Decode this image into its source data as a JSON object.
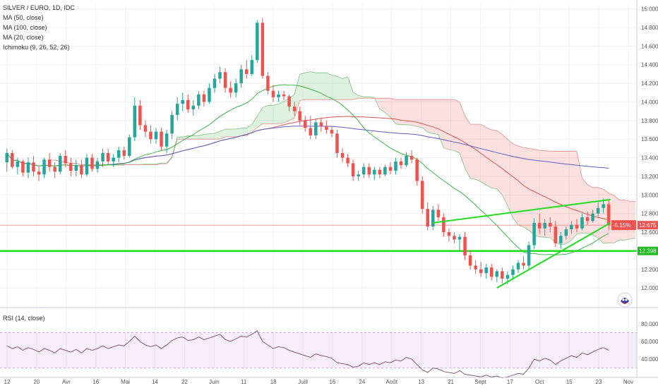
{
  "chart_data": {
    "type": "candlestick",
    "symbol_title": "SILVER / EURO, 1D, IDC",
    "indicators": [
      "MA (50, close)",
      "MA (100, close)",
      "MA (20, close)",
      "Ichimoku (9, 26, 52, 26)"
    ],
    "rsi_title": "RSI (14, close)",
    "price_axis": {
      "ticks": [
        "15.000",
        "14.800",
        "14.600",
        "14.400",
        "14.200",
        "14.000",
        "13.800",
        "13.600",
        "13.400",
        "13.200",
        "13.000",
        "12.800",
        "12.600",
        "12.400",
        "12.200",
        "12.000"
      ],
      "range": [
        11.88,
        15.05
      ]
    },
    "rsi_axis": {
      "ticks": [
        "80.0000",
        "60.0000",
        "40.0000"
      ],
      "range": [
        25,
        95
      ],
      "bands": [
        70,
        30
      ]
    },
    "x_labels": [
      "12",
      "20",
      "Avr",
      "16",
      "Mai",
      "14",
      "22",
      "Juin",
      "11",
      "18",
      "Juill",
      "16",
      "24",
      "Août",
      "13",
      "21",
      "Sept",
      "17",
      "Oct",
      "15",
      "23",
      "Nov"
    ],
    "price_badges": {
      "change": "-5.15%",
      "last": "12.675",
      "level": "12.398"
    },
    "last_price": 12.675,
    "level_price": 12.398,
    "candles": [
      {
        "o": 13.35,
        "h": 13.5,
        "l": 13.25,
        "c": 13.45
      },
      {
        "o": 13.45,
        "h": 13.48,
        "l": 13.28,
        "c": 13.3
      },
      {
        "o": 13.3,
        "h": 13.4,
        "l": 13.22,
        "c": 13.36
      },
      {
        "o": 13.36,
        "h": 13.38,
        "l": 13.2,
        "c": 13.24
      },
      {
        "o": 13.24,
        "h": 13.4,
        "l": 13.18,
        "c": 13.35
      },
      {
        "o": 13.35,
        "h": 13.42,
        "l": 13.2,
        "c": 13.25
      },
      {
        "o": 13.25,
        "h": 13.3,
        "l": 13.15,
        "c": 13.22
      },
      {
        "o": 13.22,
        "h": 13.4,
        "l": 13.18,
        "c": 13.38
      },
      {
        "o": 13.38,
        "h": 13.45,
        "l": 13.25,
        "c": 13.3
      },
      {
        "o": 13.3,
        "h": 13.35,
        "l": 13.18,
        "c": 13.25
      },
      {
        "o": 13.25,
        "h": 13.45,
        "l": 13.22,
        "c": 13.42
      },
      {
        "o": 13.42,
        "h": 13.48,
        "l": 13.3,
        "c": 13.34
      },
      {
        "o": 13.34,
        "h": 13.4,
        "l": 13.2,
        "c": 13.26
      },
      {
        "o": 13.26,
        "h": 13.38,
        "l": 13.2,
        "c": 13.32
      },
      {
        "o": 13.32,
        "h": 13.38,
        "l": 13.18,
        "c": 13.22
      },
      {
        "o": 13.22,
        "h": 13.44,
        "l": 13.2,
        "c": 13.4
      },
      {
        "o": 13.4,
        "h": 13.44,
        "l": 13.25,
        "c": 13.28
      },
      {
        "o": 13.28,
        "h": 13.4,
        "l": 13.24,
        "c": 13.36
      },
      {
        "o": 13.36,
        "h": 13.5,
        "l": 13.3,
        "c": 13.45
      },
      {
        "o": 13.45,
        "h": 13.5,
        "l": 13.32,
        "c": 13.36
      },
      {
        "o": 13.36,
        "h": 13.44,
        "l": 13.3,
        "c": 13.4
      },
      {
        "o": 13.4,
        "h": 13.52,
        "l": 13.35,
        "c": 13.48
      },
      {
        "o": 13.48,
        "h": 13.52,
        "l": 13.38,
        "c": 13.42
      },
      {
        "o": 13.42,
        "h": 13.65,
        "l": 13.4,
        "c": 13.62
      },
      {
        "o": 13.62,
        "h": 14.05,
        "l": 13.58,
        "c": 13.96
      },
      {
        "o": 13.96,
        "h": 14.02,
        "l": 13.7,
        "c": 13.75
      },
      {
        "o": 13.75,
        "h": 13.8,
        "l": 13.62,
        "c": 13.68
      },
      {
        "o": 13.68,
        "h": 13.75,
        "l": 13.55,
        "c": 13.6
      },
      {
        "o": 13.6,
        "h": 13.72,
        "l": 13.55,
        "c": 13.68
      },
      {
        "o": 13.68,
        "h": 13.72,
        "l": 13.48,
        "c": 13.52
      },
      {
        "o": 13.52,
        "h": 13.7,
        "l": 13.45,
        "c": 13.66
      },
      {
        "o": 13.66,
        "h": 13.9,
        "l": 13.6,
        "c": 13.86
      },
      {
        "o": 13.86,
        "h": 14.05,
        "l": 13.8,
        "c": 13.98
      },
      {
        "o": 13.98,
        "h": 14.1,
        "l": 13.9,
        "c": 14.02
      },
      {
        "o": 14.02,
        "h": 14.08,
        "l": 13.88,
        "c": 13.92
      },
      {
        "o": 13.92,
        "h": 14.02,
        "l": 13.85,
        "c": 13.96
      },
      {
        "o": 13.96,
        "h": 14.12,
        "l": 13.92,
        "c": 14.08
      },
      {
        "o": 14.08,
        "h": 14.12,
        "l": 13.95,
        "c": 14.0
      },
      {
        "o": 14.0,
        "h": 14.2,
        "l": 13.98,
        "c": 14.15
      },
      {
        "o": 14.15,
        "h": 14.3,
        "l": 14.1,
        "c": 14.25
      },
      {
        "o": 14.25,
        "h": 14.38,
        "l": 14.2,
        "c": 14.32
      },
      {
        "o": 14.32,
        "h": 14.36,
        "l": 14.1,
        "c": 14.15
      },
      {
        "o": 14.15,
        "h": 14.22,
        "l": 14.05,
        "c": 14.1
      },
      {
        "o": 14.1,
        "h": 14.25,
        "l": 14.05,
        "c": 14.2
      },
      {
        "o": 14.2,
        "h": 14.4,
        "l": 14.15,
        "c": 14.35
      },
      {
        "o": 14.35,
        "h": 14.45,
        "l": 14.25,
        "c": 14.3
      },
      {
        "o": 14.3,
        "h": 14.5,
        "l": 14.28,
        "c": 14.45
      },
      {
        "o": 14.45,
        "h": 14.88,
        "l": 14.42,
        "c": 14.85
      },
      {
        "o": 14.85,
        "h": 14.9,
        "l": 14.25,
        "c": 14.28
      },
      {
        "o": 14.28,
        "h": 14.32,
        "l": 14.08,
        "c": 14.12
      },
      {
        "o": 14.12,
        "h": 14.18,
        "l": 14.0,
        "c": 14.05
      },
      {
        "o": 14.05,
        "h": 14.12,
        "l": 14.0,
        "c": 14.08
      },
      {
        "o": 14.08,
        "h": 14.12,
        "l": 14.02,
        "c": 14.06
      },
      {
        "o": 14.06,
        "h": 14.08,
        "l": 13.9,
        "c": 13.95
      },
      {
        "o": 13.95,
        "h": 14.0,
        "l": 13.85,
        "c": 13.9
      },
      {
        "o": 13.9,
        "h": 13.95,
        "l": 13.75,
        "c": 13.8
      },
      {
        "o": 13.8,
        "h": 13.85,
        "l": 13.68,
        "c": 13.72
      },
      {
        "o": 13.72,
        "h": 13.85,
        "l": 13.6,
        "c": 13.64
      },
      {
        "o": 13.64,
        "h": 13.82,
        "l": 13.6,
        "c": 13.78
      },
      {
        "o": 13.78,
        "h": 13.82,
        "l": 13.68,
        "c": 13.74
      },
      {
        "o": 13.74,
        "h": 13.8,
        "l": 13.66,
        "c": 13.7
      },
      {
        "o": 13.7,
        "h": 13.74,
        "l": 13.62,
        "c": 13.66
      },
      {
        "o": 13.66,
        "h": 13.7,
        "l": 13.4,
        "c": 13.45
      },
      {
        "o": 13.45,
        "h": 13.5,
        "l": 13.35,
        "c": 13.4
      },
      {
        "o": 13.4,
        "h": 13.44,
        "l": 13.3,
        "c": 13.34
      },
      {
        "o": 13.34,
        "h": 13.38,
        "l": 13.15,
        "c": 13.2
      },
      {
        "o": 13.2,
        "h": 13.26,
        "l": 13.15,
        "c": 13.22
      },
      {
        "o": 13.22,
        "h": 13.34,
        "l": 13.18,
        "c": 13.3
      },
      {
        "o": 13.3,
        "h": 13.34,
        "l": 13.18,
        "c": 13.22
      },
      {
        "o": 13.22,
        "h": 13.3,
        "l": 13.16,
        "c": 13.27
      },
      {
        "o": 13.27,
        "h": 13.3,
        "l": 13.18,
        "c": 13.22
      },
      {
        "o": 13.22,
        "h": 13.32,
        "l": 13.2,
        "c": 13.3
      },
      {
        "o": 13.3,
        "h": 13.35,
        "l": 13.22,
        "c": 13.26
      },
      {
        "o": 13.26,
        "h": 13.4,
        "l": 13.22,
        "c": 13.36
      },
      {
        "o": 13.36,
        "h": 13.4,
        "l": 13.28,
        "c": 13.32
      },
      {
        "o": 13.32,
        "h": 13.46,
        "l": 13.3,
        "c": 13.42
      },
      {
        "o": 13.42,
        "h": 13.48,
        "l": 13.34,
        "c": 13.38
      },
      {
        "o": 13.38,
        "h": 13.4,
        "l": 13.1,
        "c": 13.15
      },
      {
        "o": 13.15,
        "h": 13.2,
        "l": 12.8,
        "c": 12.85
      },
      {
        "o": 12.85,
        "h": 12.92,
        "l": 12.62,
        "c": 12.66
      },
      {
        "o": 12.66,
        "h": 12.88,
        "l": 12.62,
        "c": 12.84
      },
      {
        "o": 12.84,
        "h": 12.9,
        "l": 12.72,
        "c": 12.76
      },
      {
        "o": 12.76,
        "h": 12.8,
        "l": 12.55,
        "c": 12.6
      },
      {
        "o": 12.6,
        "h": 12.64,
        "l": 12.5,
        "c": 12.56
      },
      {
        "o": 12.56,
        "h": 12.6,
        "l": 12.48,
        "c": 12.52
      },
      {
        "o": 12.52,
        "h": 12.58,
        "l": 12.4,
        "c": 12.55
      },
      {
        "o": 12.55,
        "h": 12.6,
        "l": 12.3,
        "c": 12.35
      },
      {
        "o": 12.35,
        "h": 12.4,
        "l": 12.2,
        "c": 12.24
      },
      {
        "o": 12.24,
        "h": 12.3,
        "l": 12.15,
        "c": 12.2
      },
      {
        "o": 12.2,
        "h": 12.28,
        "l": 12.12,
        "c": 12.16
      },
      {
        "o": 12.16,
        "h": 12.26,
        "l": 12.1,
        "c": 12.22
      },
      {
        "o": 12.22,
        "h": 12.26,
        "l": 12.08,
        "c": 12.12
      },
      {
        "o": 12.12,
        "h": 12.2,
        "l": 12.06,
        "c": 12.18
      },
      {
        "o": 12.18,
        "h": 12.22,
        "l": 12.05,
        "c": 12.1
      },
      {
        "o": 12.1,
        "h": 12.18,
        "l": 12.04,
        "c": 12.14
      },
      {
        "o": 12.14,
        "h": 12.24,
        "l": 12.1,
        "c": 12.2
      },
      {
        "o": 12.2,
        "h": 12.3,
        "l": 12.16,
        "c": 12.27
      },
      {
        "o": 12.27,
        "h": 12.34,
        "l": 12.2,
        "c": 12.24
      },
      {
        "o": 12.24,
        "h": 12.5,
        "l": 12.2,
        "c": 12.46
      },
      {
        "o": 12.46,
        "h": 12.75,
        "l": 12.42,
        "c": 12.7
      },
      {
        "o": 12.7,
        "h": 12.8,
        "l": 12.58,
        "c": 12.64
      },
      {
        "o": 12.64,
        "h": 12.74,
        "l": 12.56,
        "c": 12.7
      },
      {
        "o": 12.7,
        "h": 12.76,
        "l": 12.6,
        "c": 12.66
      },
      {
        "o": 12.66,
        "h": 12.72,
        "l": 12.44,
        "c": 12.48
      },
      {
        "o": 12.48,
        "h": 12.6,
        "l": 12.42,
        "c": 12.56
      },
      {
        "o": 12.56,
        "h": 12.66,
        "l": 12.52,
        "c": 12.63
      },
      {
        "o": 12.63,
        "h": 12.72,
        "l": 12.58,
        "c": 12.68
      },
      {
        "o": 12.68,
        "h": 12.74,
        "l": 12.6,
        "c": 12.64
      },
      {
        "o": 12.64,
        "h": 12.8,
        "l": 12.62,
        "c": 12.76
      },
      {
        "o": 12.76,
        "h": 12.82,
        "l": 12.68,
        "c": 12.72
      },
      {
        "o": 12.72,
        "h": 12.84,
        "l": 12.7,
        "c": 12.8
      },
      {
        "o": 12.8,
        "h": 12.92,
        "l": 12.76,
        "c": 12.86
      },
      {
        "o": 12.86,
        "h": 12.96,
        "l": 12.8,
        "c": 12.9
      },
      {
        "o": 12.9,
        "h": 12.94,
        "l": 12.62,
        "c": 12.675
      }
    ],
    "rsi": [
      55,
      52,
      54,
      50,
      53,
      51,
      48,
      52,
      50,
      47,
      52,
      50,
      48,
      51,
      47,
      52,
      50,
      52,
      55,
      52,
      54,
      56,
      55,
      60,
      66,
      60,
      56,
      54,
      56,
      52,
      56,
      61,
      64,
      65,
      61,
      62,
      65,
      62,
      64,
      66,
      68,
      62,
      60,
      63,
      66,
      65,
      68,
      72,
      60,
      56,
      52,
      54,
      53,
      50,
      48,
      46,
      44,
      42,
      46,
      44,
      43,
      41,
      36,
      35,
      34,
      31,
      32,
      36,
      34,
      36,
      34,
      37,
      36,
      39,
      38,
      42,
      40,
      34,
      28,
      25,
      30,
      29,
      26,
      25,
      24,
      27,
      23,
      22,
      21,
      20,
      22,
      20,
      21,
      19,
      20,
      22,
      24,
      23,
      30,
      40,
      38,
      41,
      39,
      34,
      38,
      41,
      44,
      42,
      47,
      45,
      48,
      51,
      53,
      50
    ]
  }
}
